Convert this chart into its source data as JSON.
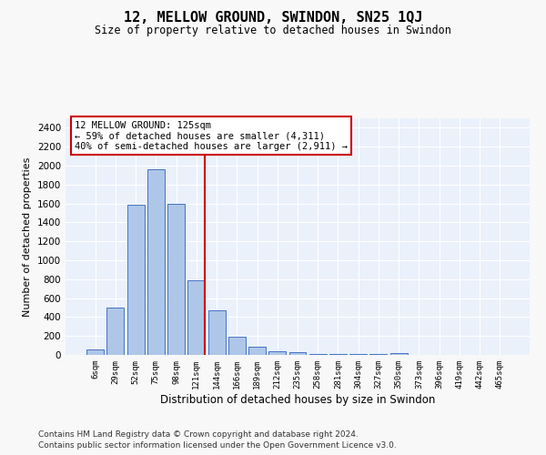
{
  "title": "12, MELLOW GROUND, SWINDON, SN25 1QJ",
  "subtitle": "Size of property relative to detached houses in Swindon",
  "xlabel": "Distribution of detached houses by size in Swindon",
  "ylabel": "Number of detached properties",
  "categories": [
    "6sqm",
    "29sqm",
    "52sqm",
    "75sqm",
    "98sqm",
    "121sqm",
    "144sqm",
    "166sqm",
    "189sqm",
    "212sqm",
    "235sqm",
    "258sqm",
    "281sqm",
    "304sqm",
    "327sqm",
    "350sqm",
    "373sqm",
    "396sqm",
    "419sqm",
    "442sqm",
    "465sqm"
  ],
  "values": [
    60,
    500,
    1590,
    1960,
    1600,
    790,
    470,
    195,
    90,
    35,
    25,
    5,
    5,
    5,
    5,
    20,
    0,
    0,
    0,
    0,
    0
  ],
  "bar_color": "#aec6e8",
  "bar_edge_color": "#4472c4",
  "vline_color": "#cc0000",
  "annotation_title": "12 MELLOW GROUND: 125sqm",
  "annotation_line2": "← 59% of detached houses are smaller (4,311)",
  "annotation_line3": "40% of semi-detached houses are larger (2,911) →",
  "annotation_box_color": "#cc0000",
  "ylim": [
    0,
    2500
  ],
  "yticks": [
    0,
    200,
    400,
    600,
    800,
    1000,
    1200,
    1400,
    1600,
    1800,
    2000,
    2200,
    2400
  ],
  "background_color": "#eaf1fb",
  "grid_color": "#ffffff",
  "fig_background": "#f8f8f8",
  "footer_line1": "Contains HM Land Registry data © Crown copyright and database right 2024.",
  "footer_line2": "Contains public sector information licensed under the Open Government Licence v3.0."
}
